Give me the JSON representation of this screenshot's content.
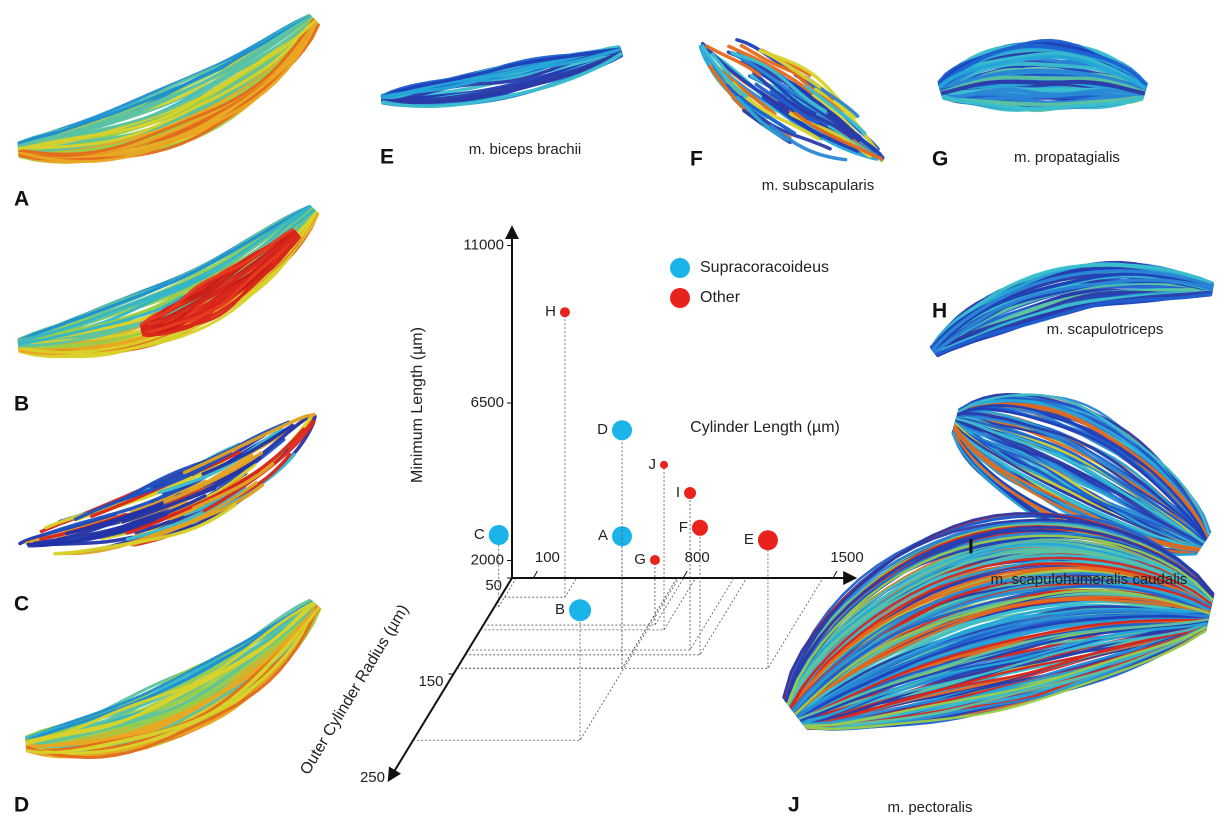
{
  "panels": [
    {
      "label": "A"
    },
    {
      "label": "B"
    },
    {
      "label": "C"
    },
    {
      "label": "D"
    },
    {
      "label": "E",
      "name": "m. biceps brachii"
    },
    {
      "label": "F",
      "name": "m. subscapularis"
    },
    {
      "label": "G",
      "name": "m. propatagialis"
    },
    {
      "label": "H",
      "name": "m. scapulotriceps"
    },
    {
      "label": "I",
      "name": "m. scapulohumeralis caudalis"
    },
    {
      "label": "J",
      "name": "m. pectoralis"
    }
  ],
  "chart_data": {
    "type": "scatter3d",
    "x_label": "Cylinder Length (µm)",
    "y_label": "Minimum Length (µm)",
    "z_label": "Outer Cylinder Radius (µm)",
    "xlim": [
      0,
      1600
    ],
    "ylim": [
      1500,
      11500
    ],
    "zlim": [
      50,
      260
    ],
    "xticks": [
      100,
      800,
      1500
    ],
    "yticks": [
      2000,
      6500,
      11000
    ],
    "zticks": [
      50,
      150,
      250
    ],
    "legend": "top-right",
    "series": [
      {
        "name": "Supracoracoideus",
        "color": "#1ab3ea",
        "labels": [
          "A",
          "B",
          "C",
          "D"
        ],
        "x": [
          771,
          780,
          20,
          771
        ],
        "y": [
          5271,
          5214,
          3550,
          8300
        ],
        "z": [
          144,
          219,
          80,
          144
        ],
        "sizes": [
          10,
          11,
          10,
          10
        ]
      },
      {
        "name": "Other",
        "color": "#e8221c",
        "labels": [
          "E",
          "F",
          "G",
          "H",
          "I",
          "J"
        ],
        "x": [
          1453,
          1097,
          802,
          302,
          1037,
          858
        ],
        "y": [
          5157,
          5129,
          3357,
          9643,
          5986,
          6214
        ],
        "z": [
          144,
          130,
          99,
          70,
          125,
          104
        ],
        "sizes": [
          10,
          8,
          5,
          5,
          6,
          4
        ]
      }
    ]
  }
}
